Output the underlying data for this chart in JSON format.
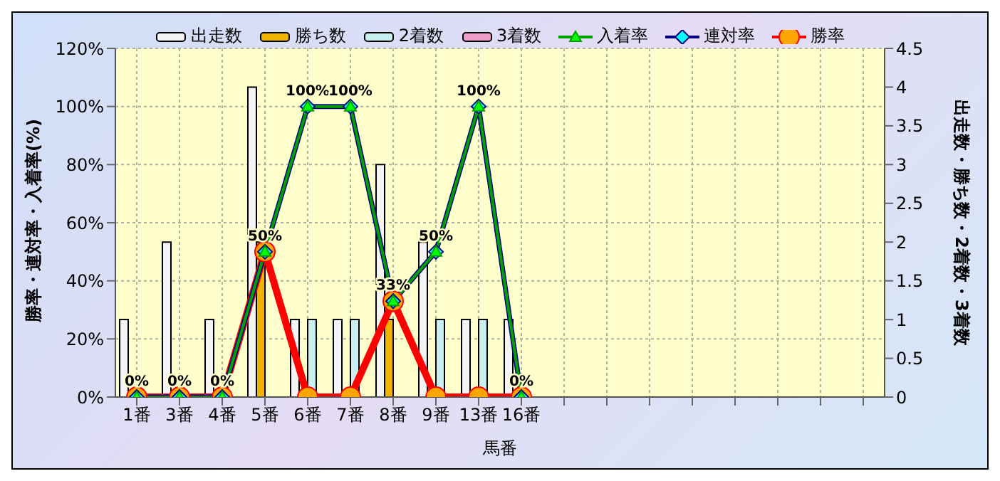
{
  "chart_data": {
    "type": "bar",
    "xlabel": "馬番",
    "ylabel": "勝率・連対率・入着率(%)",
    "y2label": "出走数・勝ち数・2着数・3着数",
    "categories": [
      "1番",
      "3番",
      "4番",
      "5番",
      "6番",
      "7番",
      "8番",
      "9番",
      "13番",
      "16番",
      null,
      null,
      null,
      null,
      null,
      null,
      null,
      null
    ],
    "series": [
      {
        "name": "出走数",
        "axis": "y2",
        "color": "#f4f4f4",
        "values": [
          1,
          2,
          1,
          4,
          1,
          1,
          3,
          2,
          1,
          1,
          null,
          null,
          null,
          null,
          null,
          null,
          null,
          null
        ]
      },
      {
        "name": "勝ち数",
        "axis": "y2",
        "color": "#f0b400",
        "values": [
          0,
          0,
          0,
          2,
          0,
          0,
          1,
          0,
          0,
          0,
          null,
          null,
          null,
          null,
          null,
          null,
          null,
          null
        ]
      },
      {
        "name": "2着数",
        "axis": "y2",
        "color": "#c8f0f0",
        "values": [
          0,
          0,
          0,
          0,
          1,
          1,
          0,
          1,
          1,
          0,
          null,
          null,
          null,
          null,
          null,
          null,
          null,
          null
        ]
      },
      {
        "name": "3着数",
        "axis": "y2",
        "color": "#f0a0c8",
        "values": [
          0,
          0,
          0,
          0,
          0,
          0,
          0,
          0,
          0,
          0,
          null,
          null,
          null,
          null,
          null,
          null,
          null,
          null
        ]
      },
      {
        "name": "入着率",
        "type": "line",
        "color": "#00a000",
        "marker": "triangle",
        "values": [
          0,
          0,
          0,
          50,
          100,
          100,
          33,
          50,
          100,
          0,
          null,
          null,
          null,
          null,
          null,
          null,
          null,
          null
        ]
      },
      {
        "name": "連対率",
        "type": "line",
        "color": "#000080",
        "marker": "diamond",
        "values": [
          0,
          0,
          0,
          50,
          100,
          100,
          33,
          50,
          100,
          0,
          null,
          null,
          null,
          null,
          null,
          null,
          null,
          null
        ],
        "value_labels": [
          "0%",
          "0%",
          "0%",
          "50%",
          "100%",
          "100%",
          "33%",
          "50%",
          "100%",
          "0%",
          null,
          null,
          null,
          null,
          null,
          null,
          null,
          null
        ]
      },
      {
        "name": "勝率",
        "type": "line",
        "color": "#ff0000",
        "marker": "circle",
        "values": [
          0,
          0,
          0,
          50,
          0,
          0,
          33,
          0,
          0,
          0,
          null,
          null,
          null,
          null,
          null,
          null,
          null,
          null
        ]
      }
    ],
    "ylim": [
      0,
      120
    ],
    "yticks": [
      {
        "value": 0,
        "label": "0%"
      },
      {
        "value": 20,
        "label": "20%"
      },
      {
        "value": 40,
        "label": "40%"
      },
      {
        "value": 60,
        "label": "60%"
      },
      {
        "value": 80,
        "label": "80%"
      },
      {
        "value": 100,
        "label": "100%"
      },
      {
        "value": 120,
        "label": "120%"
      }
    ],
    "y2lim": [
      0,
      4.5
    ],
    "y2ticks": [
      0,
      0.5,
      1,
      1.5,
      2,
      2.5,
      3,
      3.5,
      4,
      4.5
    ],
    "grid": true,
    "legend": "top"
  }
}
